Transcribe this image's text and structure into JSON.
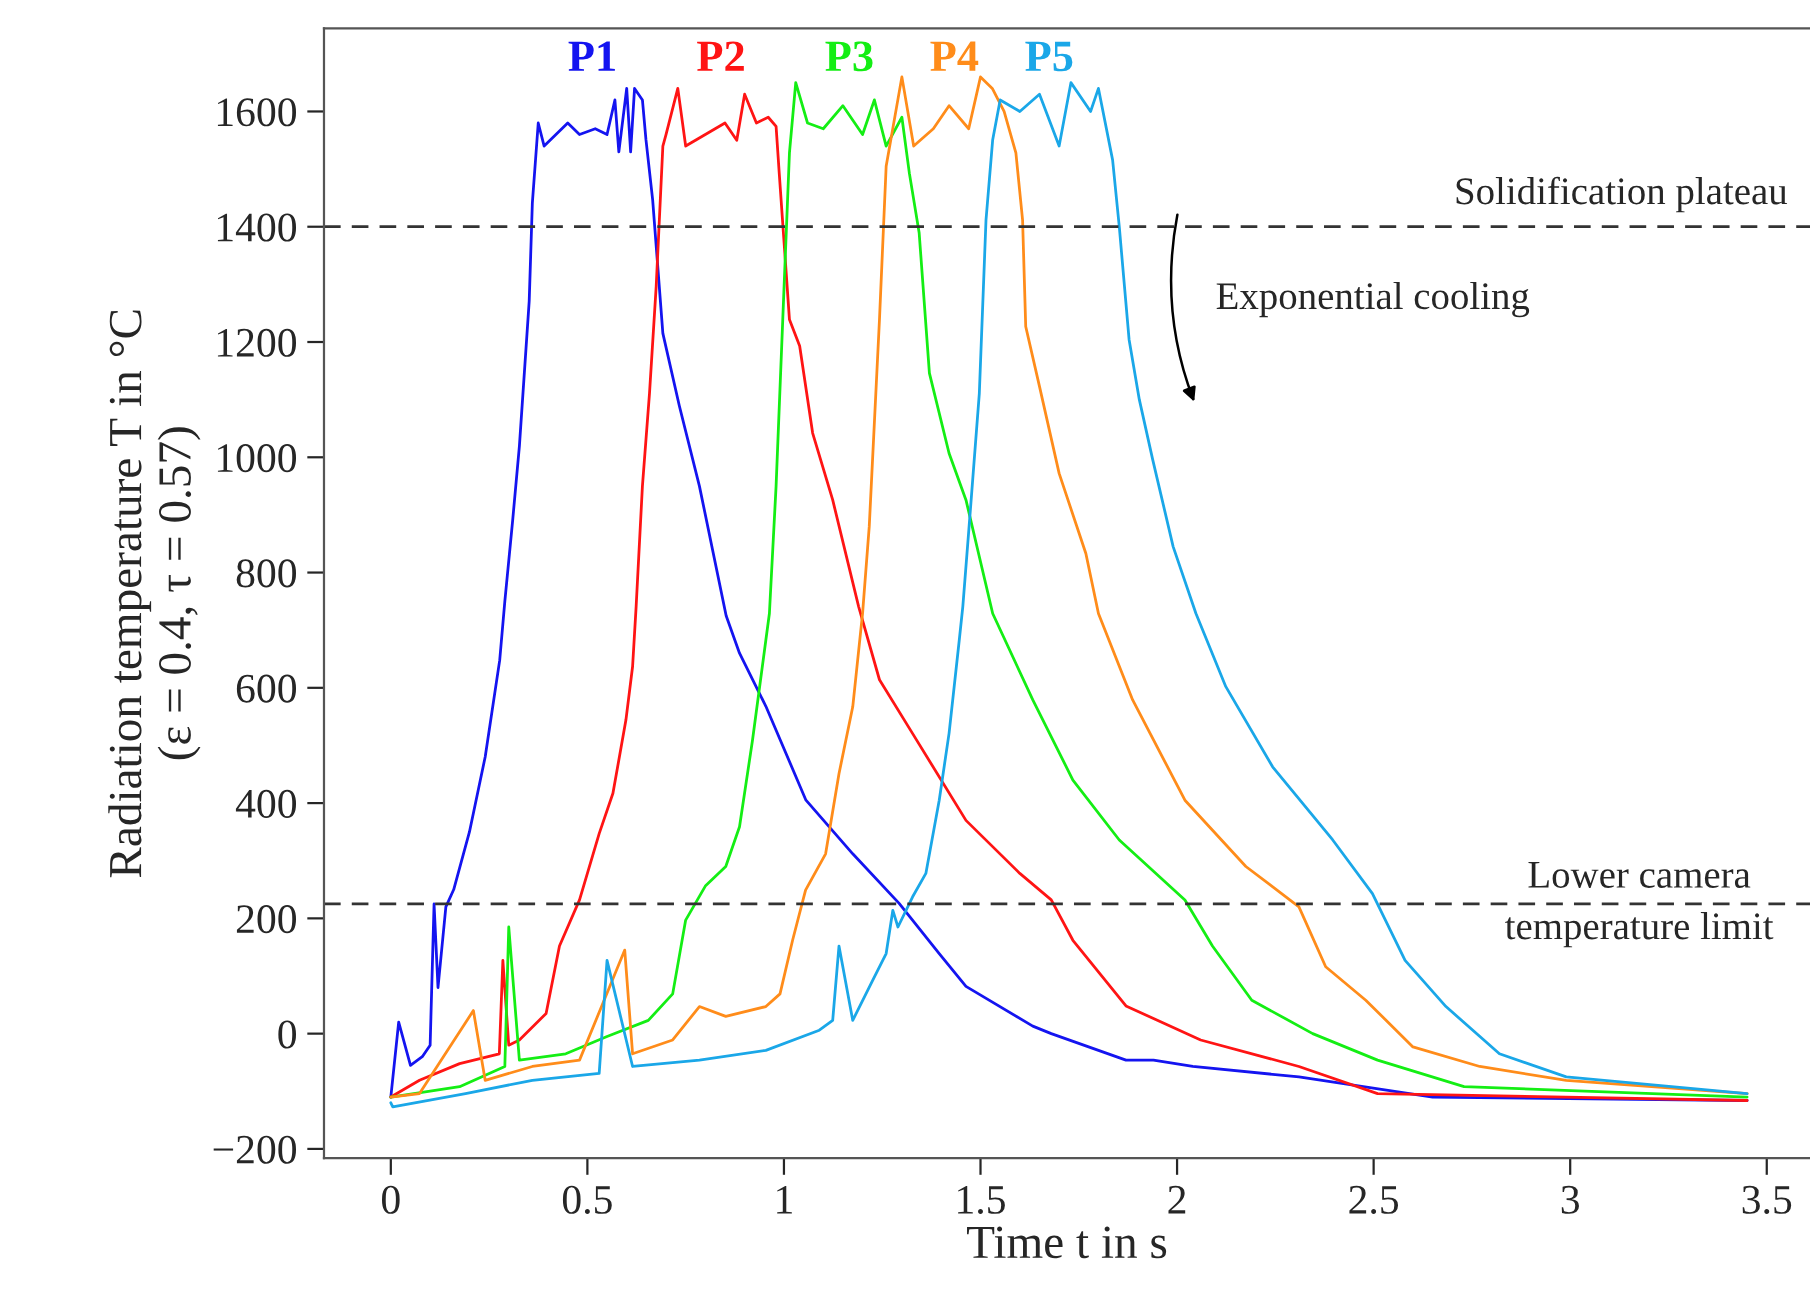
{
  "chart_data": {
    "type": "line",
    "xlabel": "Time t in s",
    "ylabel": "Radiation temperature T in °C\n(ε = 0.4, τ = 0.57)",
    "xlim": [
      -0.17,
      3.61
    ],
    "ylim": [
      -216,
      1744
    ],
    "xticks": [
      0,
      0.5,
      1,
      1.5,
      2,
      2.5,
      3,
      3.5
    ],
    "yticks": [
      {
        "value": -200,
        "label": "−200"
      },
      0,
      200,
      400,
      600,
      800,
      1000,
      1200,
      1400,
      1600
    ],
    "grid": false,
    "marker": "none",
    "line_style": "solid",
    "ref_lines": [
      {
        "axis": "y",
        "value": 1400,
        "label": "Solidification plateau",
        "color": "#333333",
        "line_style": "dashed"
      },
      {
        "axis": "y",
        "value": 225,
        "label": "Lower camera\ntemperature limit",
        "color": "#333333",
        "line_style": "dashed"
      }
    ],
    "annotations": [
      "Exponential cooling"
    ],
    "series": [
      {
        "name": "P1",
        "color": "#1414f0",
        "x": [
          0,
          0.02,
          0.05,
          0.08,
          0.1,
          0.11,
          0.12,
          0.14,
          0.16,
          0.2,
          0.24,
          0.277,
          0.29,
          0.31,
          0.327,
          0.352,
          0.36,
          0.375,
          0.39,
          0.42,
          0.45,
          0.48,
          0.52,
          0.55,
          0.57,
          0.58,
          0.6,
          0.61,
          0.62,
          0.64,
          0.649,
          0.666,
          0.692,
          0.734,
          0.785,
          0.853,
          0.887,
          0.954,
          1.056,
          1.175,
          1.293,
          1.395,
          1.463,
          1.633,
          1.68,
          1.87,
          1.94,
          2.04,
          2.31,
          2.65,
          3.45
        ],
        "values": [
          -110,
          20,
          -55,
          -40,
          -20,
          225,
          80,
          220,
          250,
          350,
          480,
          648,
          750,
          891,
          1019,
          1271,
          1441,
          1580,
          1540,
          1560,
          1580,
          1560,
          1570,
          1560,
          1620,
          1530,
          1640,
          1530,
          1640,
          1620,
          1551,
          1447,
          1215,
          1089,
          950,
          725,
          660,
          568,
          405,
          312,
          226,
          139,
          82,
          13,
          0,
          -46,
          -46,
          -57,
          -75,
          -110,
          -116
        ]
      },
      {
        "name": "P2",
        "color": "#ff1414",
        "x": [
          0,
          0.073,
          0.175,
          0.276,
          0.285,
          0.3,
          0.327,
          0.395,
          0.429,
          0.48,
          0.53,
          0.565,
          0.598,
          0.615,
          0.624,
          0.64,
          0.658,
          0.675,
          0.692,
          0.7,
          0.73,
          0.75,
          0.8,
          0.85,
          0.88,
          0.9,
          0.93,
          0.96,
          0.98,
          0.988,
          1.014,
          1.04,
          1.073,
          1.124,
          1.19,
          1.243,
          1.327,
          1.463,
          1.6,
          1.68,
          1.735,
          1.87,
          2.06,
          2.31,
          2.51,
          3.45
        ],
        "values": [
          -110,
          -81,
          -52,
          -35,
          127,
          -20,
          -11,
          35,
          152,
          232,
          347,
          417,
          544,
          637,
          741,
          950,
          1111,
          1296,
          1540,
          1560,
          1640,
          1540,
          1560,
          1580,
          1550,
          1630,
          1580,
          1590,
          1574,
          1493,
          1239,
          1193,
          1042,
          926,
          741,
          614,
          521,
          370,
          278,
          232,
          162,
          48,
          -11,
          -57,
          -104,
          -116
        ]
      },
      {
        "name": "P3",
        "color": "#14ee14",
        "x": [
          0,
          0.175,
          0.29,
          0.3,
          0.327,
          0.445,
          0.55,
          0.655,
          0.717,
          0.75,
          0.8,
          0.852,
          0.887,
          0.92,
          0.954,
          0.963,
          0.98,
          0.997,
          1.014,
          1.03,
          1.06,
          1.1,
          1.15,
          1.2,
          1.23,
          1.26,
          1.3,
          1.319,
          1.344,
          1.37,
          1.42,
          1.463,
          1.531,
          1.633,
          1.735,
          1.853,
          2.02,
          2.09,
          2.19,
          2.345,
          2.51,
          2.73,
          3.45
        ],
        "values": [
          -110,
          -92,
          -57,
          185,
          -46,
          -35,
          -5,
          23,
          69,
          197,
          256,
          290,
          359,
          509,
          683,
          729,
          950,
          1239,
          1528,
          1650,
          1580,
          1570,
          1610,
          1560,
          1620,
          1540,
          1590,
          1493,
          1389,
          1146,
          1007,
          926,
          729,
          579,
          440,
          336,
          232,
          152,
          58,
          0,
          -46,
          -92,
          -110
        ]
      },
      {
        "name": "P4",
        "color": "#ff8c1a",
        "x": [
          0,
          0.073,
          0.21,
          0.24,
          0.36,
          0.48,
          0.595,
          0.615,
          0.717,
          0.785,
          0.852,
          0.954,
          0.99,
          1.022,
          1.055,
          1.106,
          1.14,
          1.175,
          1.2,
          1.217,
          1.243,
          1.26,
          1.3,
          1.33,
          1.38,
          1.42,
          1.47,
          1.5,
          1.53,
          1.56,
          1.59,
          1.607,
          1.615,
          1.65,
          1.7,
          1.768,
          1.8,
          1.887,
          2.02,
          2.175,
          2.31,
          2.378,
          2.48,
          2.6,
          2.77,
          2.99,
          3.45
        ],
        "values": [
          -110,
          -104,
          40,
          -81,
          -57,
          -46,
          145,
          -35,
          -11,
          47,
          30,
          47,
          69,
          162,
          249,
          312,
          451,
          567,
          729,
          880,
          1239,
          1505,
          1660,
          1540,
          1570,
          1610,
          1570,
          1660,
          1640,
          1600,
          1528,
          1412,
          1227,
          1123,
          972,
          833,
          729,
          579,
          405,
          290,
          220,
          116,
          58,
          -23,
          -57,
          -81,
          -104
        ]
      },
      {
        "name": "P5",
        "color": "#1aa7e8",
        "x": [
          0,
          0.005,
          0.19,
          0.36,
          0.53,
          0.55,
          0.615,
          0.785,
          0.954,
          1.09,
          1.124,
          1.14,
          1.175,
          1.226,
          1.26,
          1.277,
          1.29,
          1.327,
          1.361,
          1.395,
          1.42,
          1.446,
          1.455,
          1.471,
          1.497,
          1.514,
          1.531,
          1.55,
          1.6,
          1.65,
          1.7,
          1.73,
          1.78,
          1.8,
          1.836,
          1.853,
          1.878,
          1.904,
          1.938,
          1.99,
          2.048,
          2.124,
          2.243,
          2.396,
          2.497,
          2.58,
          2.684,
          2.82,
          2.99,
          3.45
        ],
        "values": [
          -120,
          -127,
          -104,
          -81,
          -69,
          127,
          -57,
          -46,
          -29,
          6,
          23,
          152,
          23,
          93,
          139,
          214,
          185,
          237,
          278,
          405,
          521,
          683,
          741,
          880,
          1111,
          1412,
          1551,
          1620,
          1600,
          1630,
          1540,
          1650,
          1600,
          1640,
          1516,
          1400,
          1204,
          1100,
          996,
          845,
          729,
          602,
          463,
          336,
          243,
          127,
          47,
          -35,
          -75,
          -104
        ]
      }
    ]
  }
}
